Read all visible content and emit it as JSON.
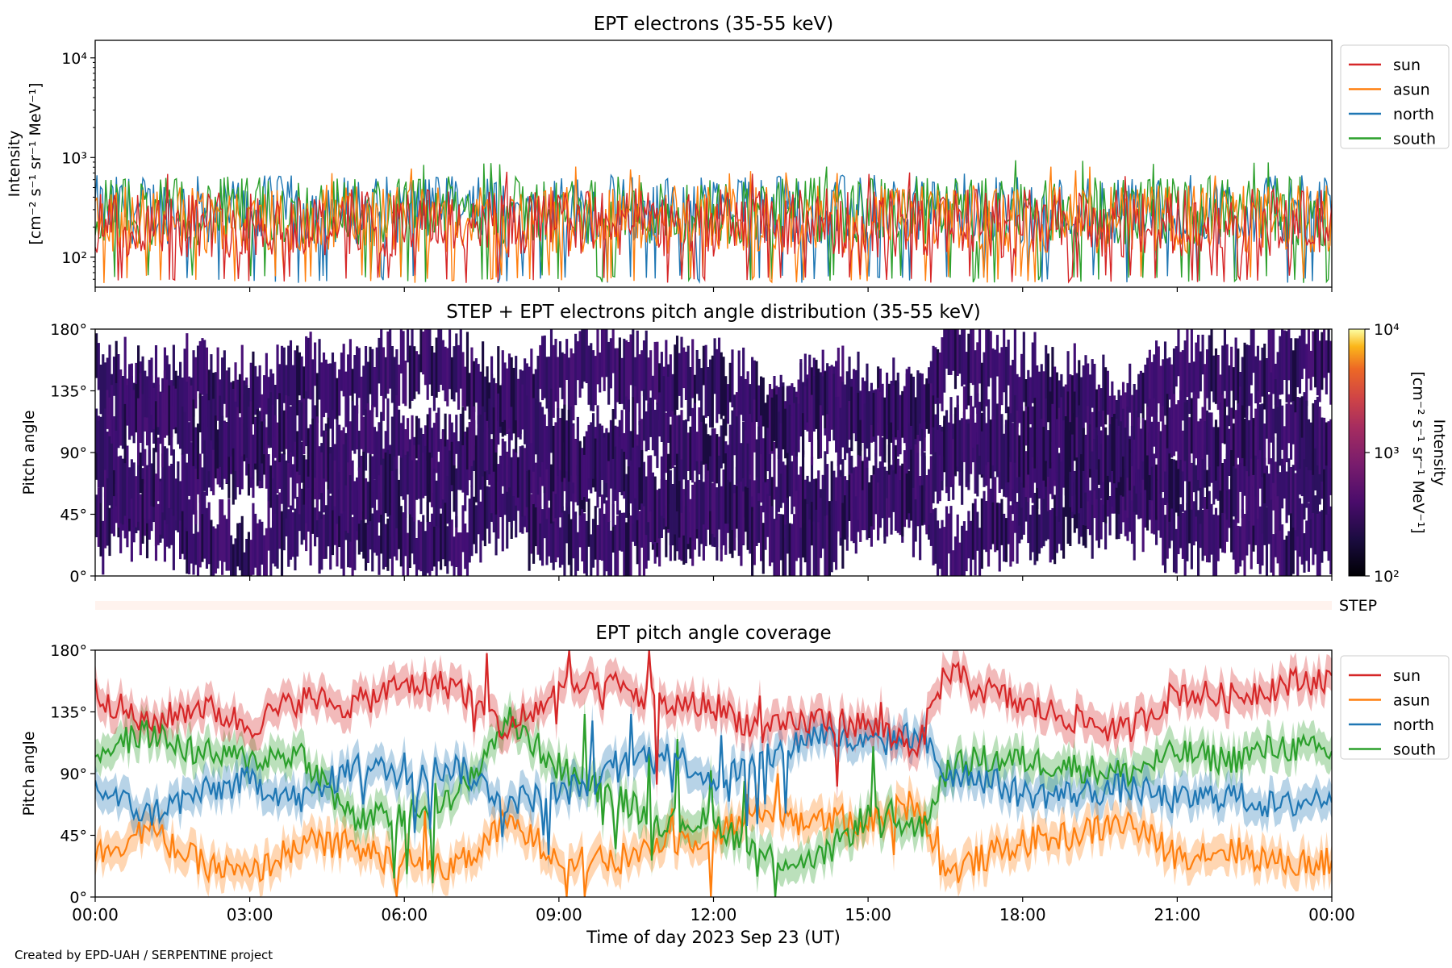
{
  "figure_credit": "Created by EPD-UAH / SERPENTINE project",
  "colors": {
    "sun": "#d62728",
    "asun": "#ff7f0e",
    "north": "#1f77b4",
    "south": "#2ca02c",
    "step_strip": "#fff3ee"
  },
  "chart_data": [
    {
      "type": "line",
      "title": "EPT electrons (35-55 keV)",
      "ylabel_line1": "Intensity",
      "ylabel_line2": "[cm⁻² s⁻¹ sr⁻¹ MeV⁻¹]",
      "yscale": "log",
      "ylim": [
        50,
        15000
      ],
      "yticks": [
        {
          "value": 100,
          "label": "10²"
        },
        {
          "value": 1000,
          "label": "10³"
        },
        {
          "value": 10000,
          "label": "10⁴"
        }
      ],
      "xlim_hours": [
        0,
        24
      ],
      "legend_position": "outside-right",
      "series": [
        {
          "name": "sun",
          "color": "#d62728",
          "typical": 220,
          "min": 55,
          "max": 800
        },
        {
          "name": "asun",
          "color": "#ff7f0e",
          "typical": 240,
          "min": 55,
          "max": 820
        },
        {
          "name": "north",
          "color": "#1f77b4",
          "typical": 300,
          "min": 55,
          "max": 700
        },
        {
          "name": "south",
          "color": "#2ca02c",
          "typical": 290,
          "min": 55,
          "max": 950
        }
      ],
      "note": "noisy time series fluctuating roughly between 50 and 900"
    },
    {
      "type": "heatmap",
      "title": "STEP + EPT electrons pitch angle distribution (35-55 keV)",
      "ylabel": "Pitch angle",
      "ylim": [
        0,
        180
      ],
      "yticks": [
        {
          "value": 0,
          "label": "0°"
        },
        {
          "value": 45,
          "label": "45°"
        },
        {
          "value": 90,
          "label": "90°"
        },
        {
          "value": 135,
          "label": "135°"
        },
        {
          "value": 180,
          "label": "180°"
        }
      ],
      "xlim_hours": [
        0,
        24
      ],
      "colorbar": {
        "label_line1": "Intensity",
        "label_line2": "[cm⁻² s⁻¹ sr⁻¹ MeV⁻¹]",
        "scale": "log",
        "range": [
          100,
          10000
        ],
        "ticks": [
          {
            "value": 100,
            "label": "10²"
          },
          {
            "value": 1000,
            "label": "10³"
          },
          {
            "value": 10000,
            "label": "10⁴"
          }
        ],
        "colormap": "inferno"
      },
      "typical_intensity": 250
    },
    {
      "type": "bar",
      "label": "STEP",
      "xlim_hours": [
        0,
        24
      ],
      "fill": "#fff3ee"
    },
    {
      "type": "area",
      "title": "EPT pitch angle coverage",
      "ylabel": "Pitch angle",
      "xlabel": "Time of day 2023 Sep 23 (UT)",
      "ylim": [
        0,
        180
      ],
      "yticks": [
        {
          "value": 0,
          "label": "0°"
        },
        {
          "value": 45,
          "label": "45°"
        },
        {
          "value": 90,
          "label": "90°"
        },
        {
          "value": 135,
          "label": "135°"
        },
        {
          "value": 180,
          "label": "180°"
        }
      ],
      "xlim_hours": [
        0,
        24
      ],
      "xticks": [
        {
          "value": 0,
          "label": "00:00"
        },
        {
          "value": 3,
          "label": "03:00"
        },
        {
          "value": 6,
          "label": "06:00"
        },
        {
          "value": 9,
          "label": "09:00"
        },
        {
          "value": 12,
          "label": "12:00"
        },
        {
          "value": 15,
          "label": "15:00"
        },
        {
          "value": 18,
          "label": "18:00"
        },
        {
          "value": 21,
          "label": "21:00"
        },
        {
          "value": 24,
          "label": "00:00"
        }
      ],
      "legend_position": "outside-right",
      "band_halfwidth_deg": 12,
      "series": [
        {
          "name": "sun",
          "color": "#d62728",
          "x": [
            0,
            1,
            2,
            3,
            4,
            5,
            6,
            7,
            8,
            9,
            10,
            11,
            12,
            13,
            14,
            15,
            16,
            16.5,
            17,
            18,
            19,
            20,
            21,
            22,
            23,
            24
          ],
          "y": [
            150,
            125,
            140,
            125,
            145,
            140,
            155,
            155,
            120,
            150,
            155,
            140,
            140,
            120,
            130,
            125,
            110,
            165,
            155,
            140,
            130,
            120,
            150,
            145,
            155,
            160
          ]
        },
        {
          "name": "asun",
          "color": "#ff7f0e",
          "x": [
            0,
            1,
            2,
            3,
            4,
            5,
            6,
            7,
            8,
            9,
            10,
            11,
            12,
            13,
            14,
            15,
            16,
            16.5,
            17,
            18,
            19,
            20,
            21,
            22,
            23,
            24
          ],
          "y": [
            30,
            50,
            25,
            15,
            40,
            35,
            25,
            20,
            55,
            30,
            25,
            40,
            45,
            65,
            55,
            55,
            70,
            15,
            25,
            40,
            45,
            55,
            30,
            35,
            25,
            25
          ]
        },
        {
          "name": "north",
          "color": "#1f77b4",
          "x": [
            0,
            1,
            2,
            3,
            4,
            5,
            6,
            7,
            8,
            9,
            10,
            11,
            12,
            13,
            14,
            15,
            16,
            16.5,
            17,
            18,
            19,
            20,
            21,
            22,
            23,
            24
          ],
          "y": [
            80,
            60,
            75,
            85,
            70,
            95,
            90,
            95,
            70,
            75,
            90,
            110,
            85,
            100,
            120,
            110,
            120,
            90,
            90,
            75,
            75,
            80,
            70,
            75,
            65,
            75
          ]
        },
        {
          "name": "south",
          "color": "#2ca02c",
          "x": [
            0,
            1,
            2,
            3,
            4,
            5,
            6,
            7,
            8,
            9,
            10,
            11,
            12,
            13,
            14,
            15,
            16,
            16.5,
            17,
            18,
            19,
            20,
            21,
            22,
            23,
            24
          ],
          "y": [
            105,
            120,
            105,
            100,
            105,
            55,
            60,
            70,
            130,
            95,
            75,
            55,
            55,
            30,
            25,
            60,
            50,
            90,
            100,
            100,
            95,
            90,
            105,
            100,
            110,
            105
          ]
        }
      ]
    }
  ]
}
